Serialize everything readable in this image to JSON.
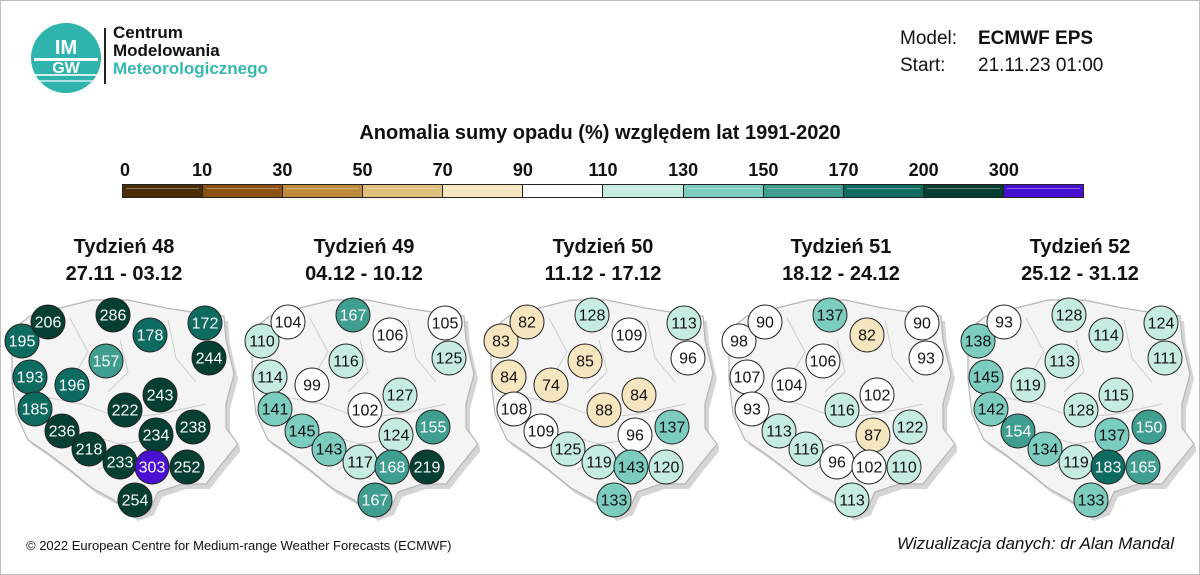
{
  "logo": {
    "text_lines": [
      "Centrum",
      "Modelowania",
      "Meteorologicznego"
    ],
    "mark_text": [
      "IM",
      "GW"
    ],
    "icon": "imgw-logo-icon"
  },
  "model_info": {
    "model_label": "Model:",
    "model_value": "ECMWF EPS",
    "start_label": "Start:",
    "start_value": "21.11.23 01:00"
  },
  "title": "Anomalia sumy opadu (%) względem lat 1991-2020",
  "scale": {
    "labels": [
      "0",
      "10",
      "30",
      "50",
      "70",
      "90",
      "110",
      "130",
      "150",
      "170",
      "200",
      "300"
    ],
    "colors": [
      "#4a2c07",
      "#8c5214",
      "#bf8a3a",
      "#dfc17b",
      "#f5e6bf",
      "#ffffff",
      "#c6ece2",
      "#7ccdbf",
      "#3f9e90",
      "#0e6b60",
      "#053f33",
      "#4a10d2"
    ]
  },
  "weeks": [
    {
      "title": "Tydzień 48",
      "dates": "27.11 - 03.12",
      "values": [
        195,
        206,
        286,
        178,
        172,
        157,
        244,
        193,
        196,
        185,
        222,
        243,
        236,
        234,
        238,
        218,
        233,
        303,
        252,
        254
      ]
    },
    {
      "title": "Tydzień 49",
      "dates": "04.12 - 10.12",
      "values": [
        110,
        104,
        167,
        106,
        105,
        116,
        125,
        114,
        99,
        141,
        102,
        127,
        145,
        124,
        155,
        143,
        117,
        168,
        219,
        167
      ]
    },
    {
      "title": "Tydzień 50",
      "dates": "11.12 - 17.12",
      "values": [
        83,
        82,
        128,
        109,
        113,
        85,
        96,
        84,
        74,
        108,
        88,
        84,
        109,
        96,
        137,
        125,
        119,
        143,
        120,
        133
      ]
    },
    {
      "title": "Tydzień 51",
      "dates": "18.12 - 24.12",
      "values": [
        98,
        90,
        137,
        82,
        90,
        106,
        93,
        107,
        104,
        93,
        116,
        102,
        113,
        87,
        122,
        116,
        96,
        102,
        110,
        113
      ]
    },
    {
      "title": "Tydzień 52",
      "dates": "25.12 - 31.12",
      "values": [
        138,
        93,
        128,
        114,
        124,
        113,
        111,
        145,
        119,
        142,
        128,
        115,
        154,
        137,
        150,
        134,
        119,
        183,
        165,
        133
      ]
    }
  ],
  "footer": {
    "copyright": "© 2022 European Centre for Medium-range Weather Forecasts (ECMWF)",
    "credit": "Wizualizacja danych: dr Alan Mandal"
  }
}
